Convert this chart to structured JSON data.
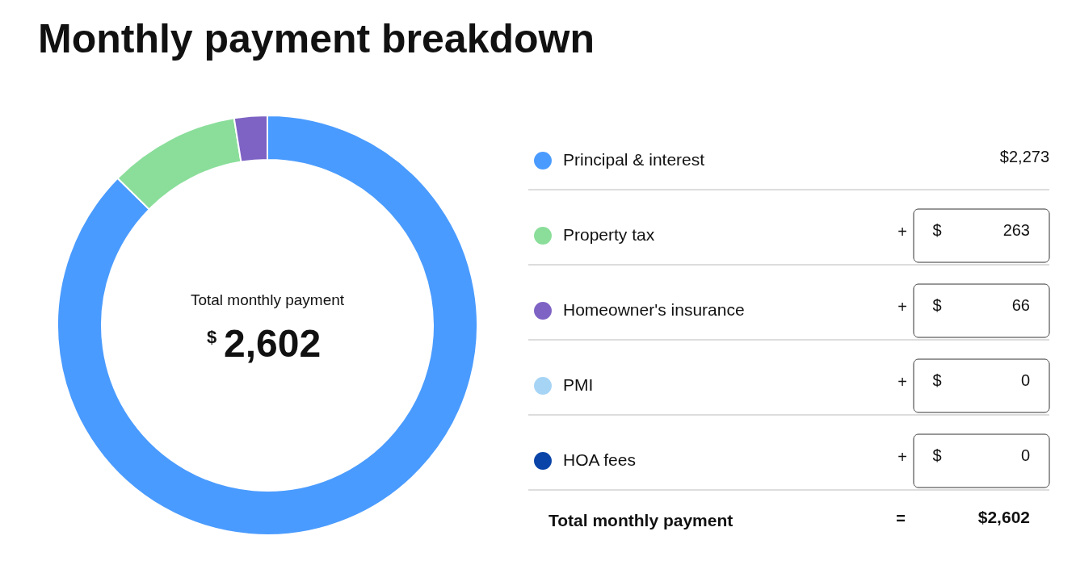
{
  "chart_data": {
    "type": "donut",
    "title": "Monthly payment breakdown",
    "categories": [
      "Principal & interest",
      "Property tax",
      "Homeowner's insurance",
      "PMI",
      "HOA fees"
    ],
    "values": [
      2273,
      263,
      66,
      0,
      0
    ],
    "colors": [
      "#4a9bff",
      "#8ade9a",
      "#7e63c4",
      "#a6d4f5",
      "#0a44a8"
    ],
    "value_labels": [
      "$2,273",
      "+ $ 263",
      "+ $ 66",
      "+ $ 0",
      "+ $ 0"
    ],
    "legend": "right",
    "annotations": [
      "Total monthly payment",
      "$ 2,602",
      "Total monthly payment",
      "=",
      "$2,602"
    ]
  }
}
